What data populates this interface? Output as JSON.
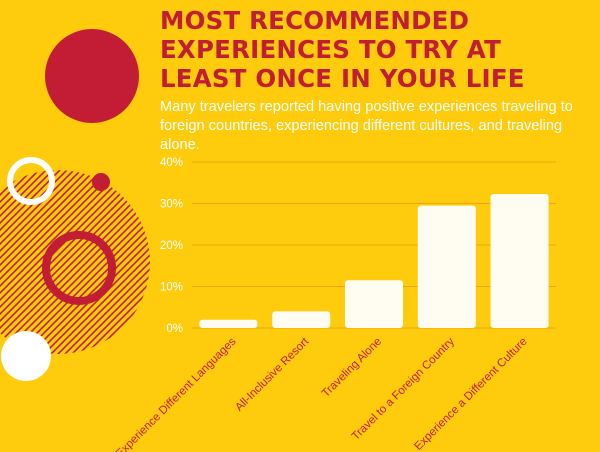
{
  "title": "MOST RECOMMENDED EXPERIENCES TO TRY AT LEAST ONCE IN YOUR LIFE",
  "subtitle": "Many travelers reported having positive experiences traveling to foreign countries, experiencing different cultures, and traveling alone.",
  "colors": {
    "background": "#fecb0d",
    "accent": "#c21d34",
    "bar": "#fffdf2",
    "circle_white": "#ffffff"
  },
  "chart_data": {
    "type": "bar",
    "categories": [
      "Experience Different Languages",
      "All-Inclusive Resort",
      "Traveling Alone",
      "Travel to a Foreign Country",
      "Experience a Different Culture"
    ],
    "values": [
      2,
      4,
      11.5,
      29.5,
      32.3
    ],
    "ylim": [
      0,
      40
    ],
    "yticks": [
      "0%",
      "10%",
      "20%",
      "30%",
      "40%"
    ],
    "grid": true,
    "legend": "none"
  }
}
